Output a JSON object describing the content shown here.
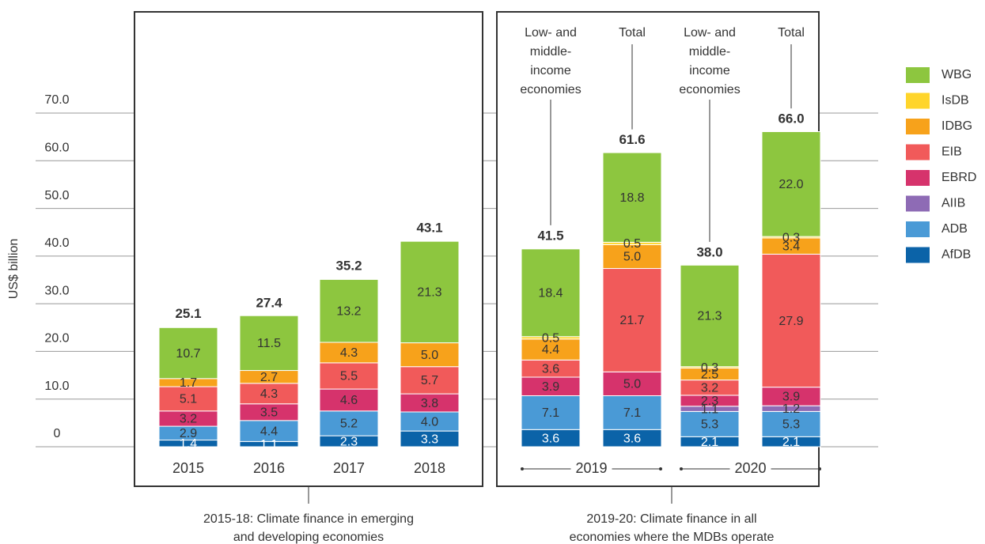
{
  "chart_data": {
    "type": "stacked_bar",
    "y_label": "US$ billion",
    "categories": [
      "2015",
      "2016",
      "2017",
      "2018",
      "Low- and middle-income economies",
      "Total",
      "Low- and middle-income economies",
      "Total"
    ],
    "groups": [
      "2019",
      "2020"
    ],
    "ylim": [
      0,
      70
    ],
    "yticks": [
      0,
      {
        "value": 10,
        "label": "10.0"
      },
      {
        "value": 20,
        "label": "20.0"
      },
      {
        "value": 30,
        "label": "30.0"
      },
      {
        "value": 40,
        "label": "40.0"
      },
      {
        "value": 50,
        "label": "50.0"
      },
      {
        "value": 60,
        "label": "60.0"
      },
      {
        "value": 70,
        "label": "70.0"
      }
    ],
    "grid": true,
    "legend": "right",
    "series": [
      {
        "name": "AfDB",
        "color": "#0b63a8",
        "values": [
          1.4,
          1.1,
          2.3,
          3.3,
          3.6,
          3.6,
          2.1,
          2.1
        ],
        "value_labels": [
          "1.4",
          "1.1",
          "2.3",
          "3.3",
          "3.6",
          "3.6",
          "2.1",
          "2.1"
        ]
      },
      {
        "name": "ADB",
        "color": "#4a9ad6",
        "values": [
          2.9,
          4.4,
          5.2,
          4.0,
          7.1,
          7.1,
          5.3,
          5.3
        ],
        "value_labels": [
          "2.9",
          "4.4",
          "5.2",
          "4.0",
          "7.1",
          "7.1",
          "5.3",
          "5.3"
        ]
      },
      {
        "name": "AIIB",
        "color": "#8e6bb5",
        "values": [
          null,
          null,
          null,
          null,
          null,
          null,
          1.1,
          1.2
        ],
        "value_labels": [
          null,
          null,
          null,
          null,
          null,
          null,
          "1.1",
          "1.2"
        ]
      },
      {
        "name": "EBRD",
        "color": "#d6336c",
        "values": [
          3.2,
          3.5,
          4.6,
          3.8,
          3.9,
          5.0,
          2.3,
          3.9
        ],
        "value_labels": [
          "3.2",
          "3.5",
          "4.6",
          "3.8",
          "3.9",
          "5.0",
          "2.3",
          "3.9"
        ]
      },
      {
        "name": "EIB",
        "color": "#f15a5a",
        "values": [
          5.1,
          4.3,
          5.5,
          5.7,
          3.6,
          21.7,
          3.2,
          27.9
        ],
        "value_labels": [
          "5.1",
          "4.3",
          "5.5",
          "5.7",
          "3.6",
          "21.7",
          "3.2",
          "27.9"
        ]
      },
      {
        "name": "IDBG",
        "color": "#f7a21b",
        "values": [
          1.7,
          2.7,
          4.3,
          5.0,
          4.4,
          5.0,
          2.5,
          3.4
        ],
        "value_labels": [
          "1.7",
          "2.7",
          "4.3",
          "5.0",
          "4.4",
          "5.0",
          "2.5",
          "3.4"
        ]
      },
      {
        "name": "IsDB",
        "color": "#ffd52b",
        "values": [
          null,
          null,
          null,
          null,
          0.5,
          0.5,
          0.3,
          0.3
        ],
        "value_labels": [
          null,
          null,
          null,
          null,
          "0.5",
          "0.5",
          "0.3",
          "0.3"
        ]
      },
      {
        "name": "WBG",
        "color": "#8dc63f",
        "values": [
          10.7,
          11.5,
          13.2,
          21.3,
          18.4,
          18.8,
          21.3,
          22.0
        ],
        "value_labels": [
          "10.7",
          "11.5",
          "13.2",
          "21.3",
          "18.4",
          "18.8",
          "21.3",
          "22.0"
        ]
      }
    ],
    "totals": {
      "values": [
        25.1,
        27.4,
        35.2,
        43.1,
        41.5,
        61.6,
        38.0,
        66.0
      ],
      "value_labels": [
        "25.1",
        "27.4",
        "35.2",
        "43.1",
        "41.5",
        "61.6",
        "38.0",
        "66.0"
      ]
    },
    "annotations": [
      [
        "2015-18: Climate finance in emerging",
        "and developing economies"
      ],
      [
        "2019-20: Climate finance in all",
        "economies where the MDBs operate"
      ]
    ]
  }
}
